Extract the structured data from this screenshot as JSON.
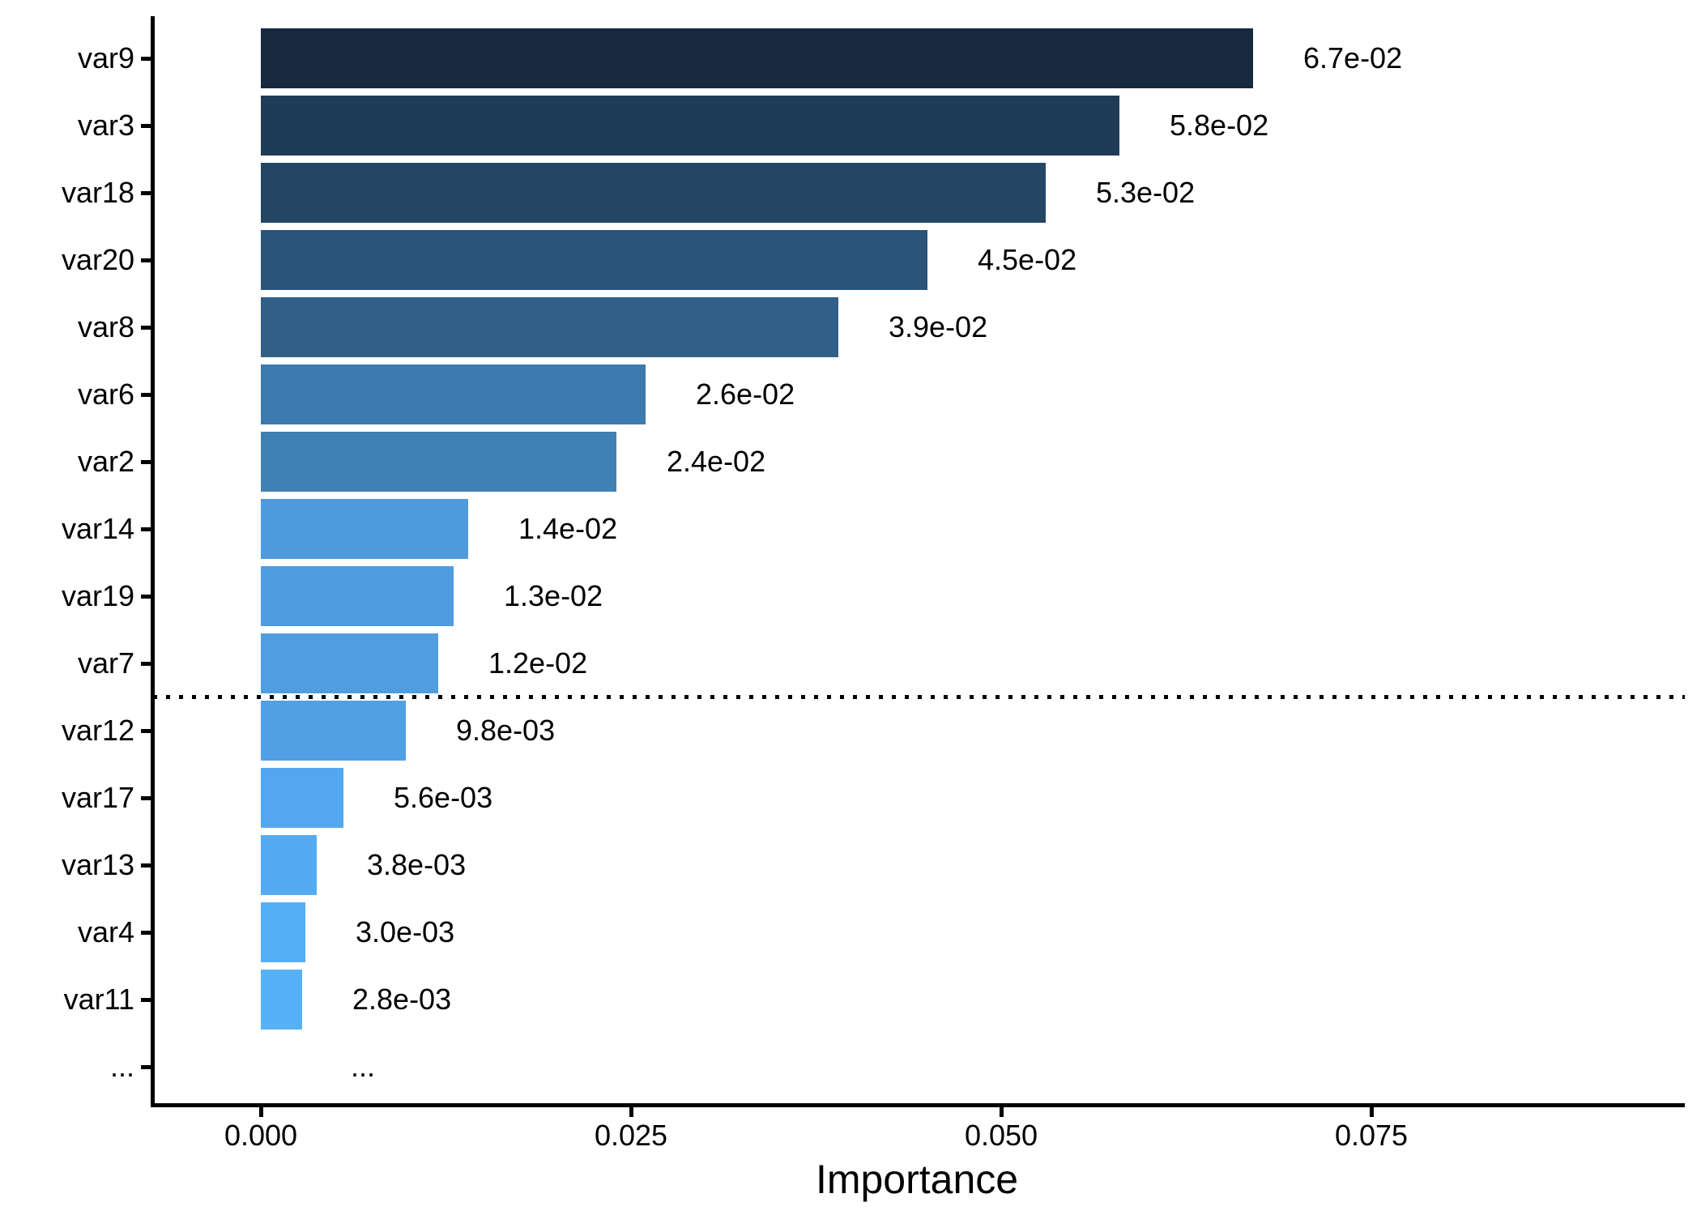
{
  "chart_data": {
    "type": "bar",
    "orientation": "horizontal",
    "title": "",
    "xlabel": "Importance",
    "ylabel": "",
    "grid": false,
    "legend": false,
    "categories": [
      "var9",
      "var3",
      "var18",
      "var20",
      "var8",
      "var6",
      "var2",
      "var14",
      "var19",
      "var7",
      "var12",
      "var17",
      "var13",
      "var4",
      "var11",
      "..."
    ],
    "values": [
      0.067,
      0.058,
      0.053,
      0.045,
      0.039,
      0.026,
      0.024,
      0.014,
      0.013,
      0.012,
      0.0098,
      0.0056,
      0.0038,
      0.003,
      0.0028,
      null
    ],
    "value_labels": [
      "6.7e-02",
      "5.8e-02",
      "5.3e-02",
      "4.5e-02",
      "3.9e-02",
      "2.6e-02",
      "2.4e-02",
      "1.4e-02",
      "1.3e-02",
      "1.2e-02",
      "9.8e-03",
      "5.6e-03",
      "3.8e-03",
      "3.0e-03",
      "2.8e-03",
      "..."
    ],
    "bar_colors": [
      "#17293F",
      "#1E3B58",
      "#224664",
      "#2A557A",
      "#315F88",
      "#3D7AAE",
      "#4080B4",
      "#4E9ADD",
      "#4F9CE0",
      "#509DE1",
      "#51A0E5",
      "#53A7EE",
      "#55ABF3",
      "#56AFF6",
      "#57B1F7",
      null
    ],
    "x_ticks": [
      0.0,
      0.025,
      0.05,
      0.075
    ],
    "x_tick_labels": [
      "0.000",
      "0.025",
      "0.050",
      "0.075"
    ],
    "xlim": [
      0,
      0.0961
    ],
    "dotted_line_after_index": 9,
    "axis_color": "#000000",
    "text_color": "#000000",
    "background_color": "#ffffff"
  }
}
